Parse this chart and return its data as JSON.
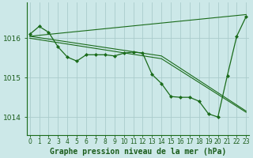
{
  "background_color": "#cce8e8",
  "grid_color": "#aacccc",
  "line_color": "#1a6b1a",
  "marker_color": "#1a6b1a",
  "xlabel": "Graphe pression niveau de la mer (hPa)",
  "xlabel_color": "#1a5c1a",
  "xlabel_fontsize": 7,
  "tick_color": "#1a5c1a",
  "tick_fontsize": 5.5,
  "ytick_fontsize": 6.5,
  "xlim": [
    -0.3,
    23.3
  ],
  "ylim": [
    1013.55,
    1016.9
  ],
  "yticks": [
    1014,
    1015,
    1016
  ],
  "xticks": [
    0,
    1,
    2,
    3,
    4,
    5,
    6,
    7,
    8,
    9,
    10,
    11,
    12,
    13,
    14,
    15,
    16,
    17,
    18,
    19,
    20,
    21,
    22,
    23
  ],
  "series": [
    {
      "x": [
        0,
        1,
        2,
        3,
        4,
        5,
        6,
        7,
        8,
        9,
        10,
        11,
        12,
        13,
        14,
        15,
        16,
        17,
        18,
        19,
        20,
        21,
        22,
        23
      ],
      "y": [
        1016.1,
        1016.3,
        1016.15,
        1015.78,
        1015.52,
        1015.42,
        1015.58,
        1015.58,
        1015.58,
        1015.55,
        1015.62,
        1015.65,
        1015.62,
        1015.08,
        1014.85,
        1014.52,
        1014.5,
        1014.5,
        1014.4,
        1014.08,
        1014.0,
        1015.05,
        1016.05,
        1016.55
      ],
      "with_markers": true
    },
    {
      "x": [
        0,
        23
      ],
      "y": [
        1016.05,
        1016.6
      ],
      "with_markers": false
    },
    {
      "x": [
        0,
        14,
        23
      ],
      "y": [
        1016.05,
        1015.55,
        1014.15
      ],
      "with_markers": false
    },
    {
      "x": [
        0,
        14,
        23
      ],
      "y": [
        1016.0,
        1015.48,
        1014.12
      ],
      "with_markers": false
    }
  ]
}
